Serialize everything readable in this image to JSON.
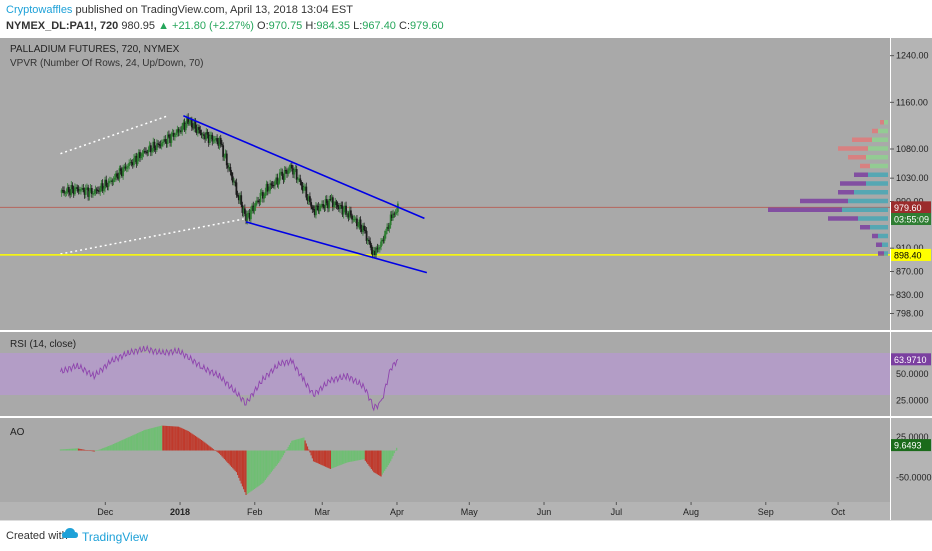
{
  "header": {
    "author": "Cryptowaffles",
    "published": " published on TradingView.com, April 13, 2018 13:04 EST",
    "symbol": "NYMEX_DL:PA1!, 720",
    "last": "980.95",
    "change": "+21.80 (+2.27%)",
    "o_label": "O:",
    "o_value": "970.75",
    "h_label": "H:",
    "h_value": "984.35",
    "l_label": "L:",
    "l_value": "967.40",
    "c_label": "C:",
    "c_value": "979.60"
  },
  "footer": {
    "created_with": "Created with",
    "brand": "TradingView"
  },
  "colors": {
    "panel_bg": "#a9a9a9",
    "up": "#2e7d32",
    "down": "#1b1b1b",
    "channel": "#0000e6",
    "support": "#ffff00",
    "rsi_band": "#b79ad0",
    "rsi_line": "#8e44ad",
    "ao_up": "#6fbf73",
    "ao_down": "#c0392b"
  },
  "chart_data": [
    {
      "type": "candlestick",
      "title": "PALLADIUM FUTURES, 720, NYMEX",
      "subtitle": "VPVR (Number Of Rows, 24, Up/Down, 70)",
      "x_ticks": [
        "Dec",
        "2018",
        "Feb",
        "Mar",
        "Apr",
        "May",
        "Jun",
        "Jul",
        "Aug",
        "Sep",
        "Oct"
      ],
      "y_ticks": [
        "1240.00",
        "1160.00",
        "1080.00",
        "1030.00",
        "990.00",
        "910.00",
        "870.00",
        "830.00",
        "798.00"
      ],
      "ylim": [
        780,
        1260
      ],
      "price_label": "979.60",
      "countdown_label": "03:55:09",
      "support_label": "898.40",
      "support_level": 898.4,
      "grid": false,
      "series": [
        {
          "values": [
            {
              "x": "2017-11-24",
              "y": 1005
            },
            {
              "x": "2017-12-01",
              "y": 1012
            },
            {
              "x": "2017-12-08",
              "y": 1005
            },
            {
              "x": "2017-12-15",
              "y": 1025
            },
            {
              "x": "2017-12-22",
              "y": 1052
            },
            {
              "x": "2017-12-29",
              "y": 1075
            },
            {
              "x": "2018-01-05",
              "y": 1090
            },
            {
              "x": "2018-01-12",
              "y": 1110
            },
            {
              "x": "2018-01-16",
              "y": 1128
            },
            {
              "x": "2018-01-22",
              "y": 1105
            },
            {
              "x": "2018-01-29",
              "y": 1092
            },
            {
              "x": "2018-02-05",
              "y": 1010
            },
            {
              "x": "2018-02-09",
              "y": 960
            },
            {
              "x": "2018-02-16",
              "y": 1005
            },
            {
              "x": "2018-02-23",
              "y": 1030
            },
            {
              "x": "2018-02-28",
              "y": 1050
            },
            {
              "x": "2018-03-05",
              "y": 1010
            },
            {
              "x": "2018-03-09",
              "y": 975
            },
            {
              "x": "2018-03-16",
              "y": 990
            },
            {
              "x": "2018-03-23",
              "y": 972
            },
            {
              "x": "2018-03-30",
              "y": 940
            },
            {
              "x": "2018-04-03",
              "y": 898
            },
            {
              "x": "2018-04-06",
              "y": 918
            },
            {
              "x": "2018-04-10",
              "y": 958
            },
            {
              "x": "2018-04-13",
              "y": 980
            }
          ]
        }
      ],
      "annotations": [
        {
          "kind": "channel-top",
          "from": {
            "x": "2018-01-14",
            "y": 1137
          },
          "to": {
            "x": "2018-04-24",
            "y": 961
          }
        },
        {
          "kind": "channel-bottom",
          "from": {
            "x": "2018-02-09",
            "y": 955
          },
          "to": {
            "x": "2018-04-25",
            "y": 868
          }
        },
        {
          "kind": "dotted-upper",
          "from": {
            "x": "2017-11-24",
            "y": 1072
          },
          "to": {
            "x": "2018-01-07",
            "y": 1136
          }
        },
        {
          "kind": "dotted-lower",
          "from": {
            "x": "2017-11-24",
            "y": 900
          },
          "to": {
            "x": "2018-02-08",
            "y": 960
          }
        }
      ],
      "volume_profile": [
        {
          "price": 1125,
          "up": 4,
          "down": 4
        },
        {
          "price": 1110,
          "up": 10,
          "down": 6
        },
        {
          "price": 1095,
          "up": 16,
          "down": 20
        },
        {
          "price": 1080,
          "up": 20,
          "down": 30
        },
        {
          "price": 1065,
          "up": 22,
          "down": 18
        },
        {
          "price": 1050,
          "up": 18,
          "down": 10
        },
        {
          "price": 1035,
          "up": 20,
          "down": 14
        },
        {
          "price": 1020,
          "up": 22,
          "down": 26
        },
        {
          "price": 1005,
          "up": 34,
          "down": 16
        },
        {
          "price": 990,
          "up": 40,
          "down": 48
        },
        {
          "price": 975,
          "up": 46,
          "down": 74
        },
        {
          "price": 960,
          "up": 30,
          "down": 30
        },
        {
          "price": 945,
          "up": 18,
          "down": 10
        },
        {
          "price": 930,
          "up": 10,
          "down": 6
        },
        {
          "price": 915,
          "up": 6,
          "down": 6
        },
        {
          "price": 900,
          "up": 4,
          "down": 6
        }
      ]
    },
    {
      "type": "line",
      "title": "RSI (14, close)",
      "y_ticks": [
        "50.0000",
        "25.0000"
      ],
      "ylim": [
        10,
        90
      ],
      "band": [
        30,
        70
      ],
      "last_label": "63.9710",
      "series": [
        {
          "values": [
            {
              "x": "2017-11-24",
              "y": 52
            },
            {
              "x": "2017-12-01",
              "y": 58
            },
            {
              "x": "2017-12-08",
              "y": 48
            },
            {
              "x": "2017-12-15",
              "y": 62
            },
            {
              "x": "2017-12-22",
              "y": 70
            },
            {
              "x": "2017-12-29",
              "y": 74
            },
            {
              "x": "2018-01-05",
              "y": 70
            },
            {
              "x": "2018-01-12",
              "y": 72
            },
            {
              "x": "2018-01-16",
              "y": 66
            },
            {
              "x": "2018-01-22",
              "y": 56
            },
            {
              "x": "2018-01-29",
              "y": 48
            },
            {
              "x": "2018-02-05",
              "y": 32
            },
            {
              "x": "2018-02-09",
              "y": 22
            },
            {
              "x": "2018-02-16",
              "y": 45
            },
            {
              "x": "2018-02-23",
              "y": 60
            },
            {
              "x": "2018-02-28",
              "y": 62
            },
            {
              "x": "2018-03-05",
              "y": 44
            },
            {
              "x": "2018-03-09",
              "y": 30
            },
            {
              "x": "2018-03-16",
              "y": 44
            },
            {
              "x": "2018-03-23",
              "y": 48
            },
            {
              "x": "2018-03-30",
              "y": 38
            },
            {
              "x": "2018-04-03",
              "y": 18
            },
            {
              "x": "2018-04-06",
              "y": 22
            },
            {
              "x": "2018-04-10",
              "y": 55
            },
            {
              "x": "2018-04-13",
              "y": 64
            }
          ]
        }
      ]
    },
    {
      "type": "bar",
      "title": "AO",
      "y_ticks": [
        "25.0000",
        "-50.0000"
      ],
      "ylim": [
        -95,
        60
      ],
      "last_label": "9.6493",
      "series": [
        {
          "values": [
            {
              "x": "2017-11-24",
              "y": 2
            },
            {
              "x": "2017-12-01",
              "y": 4
            },
            {
              "x": "2017-12-08",
              "y": -2
            },
            {
              "x": "2017-12-15",
              "y": 10
            },
            {
              "x": "2017-12-22",
              "y": 24
            },
            {
              "x": "2017-12-29",
              "y": 38
            },
            {
              "x": "2018-01-05",
              "y": 46
            },
            {
              "x": "2018-01-12",
              "y": 44
            },
            {
              "x": "2018-01-16",
              "y": 36
            },
            {
              "x": "2018-01-22",
              "y": 18
            },
            {
              "x": "2018-01-29",
              "y": -6
            },
            {
              "x": "2018-02-05",
              "y": -40
            },
            {
              "x": "2018-02-09",
              "y": -82
            },
            {
              "x": "2018-02-16",
              "y": -60
            },
            {
              "x": "2018-02-23",
              "y": -20
            },
            {
              "x": "2018-02-28",
              "y": 18
            },
            {
              "x": "2018-03-05",
              "y": 24
            },
            {
              "x": "2018-03-09",
              "y": -20
            },
            {
              "x": "2018-03-16",
              "y": -34
            },
            {
              "x": "2018-03-23",
              "y": -22
            },
            {
              "x": "2018-03-30",
              "y": -16
            },
            {
              "x": "2018-04-03",
              "y": -40
            },
            {
              "x": "2018-04-06",
              "y": -48
            },
            {
              "x": "2018-04-10",
              "y": -20
            },
            {
              "x": "2018-04-13",
              "y": 10
            }
          ]
        }
      ]
    }
  ]
}
